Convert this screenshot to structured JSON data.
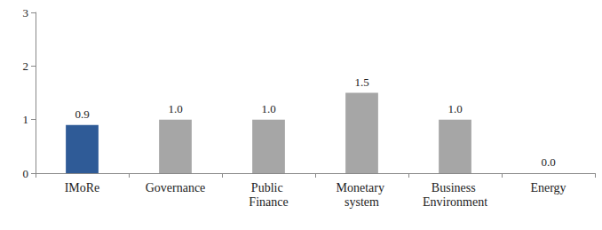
{
  "chart_data": {
    "type": "bar",
    "categories": [
      "IMoRe",
      "Governance",
      "Public Finance",
      "Monetary system",
      "Business Environment",
      "Energy"
    ],
    "values": [
      0.9,
      1.0,
      1.0,
      1.5,
      1.0,
      0.0
    ],
    "value_labels": [
      "0.9",
      "1.0",
      "1.0",
      "1.5",
      "1.0",
      "0.0"
    ],
    "colors": [
      "#2f5b97",
      "#a6a6a6",
      "#a6a6a6",
      "#a6a6a6",
      "#a6a6a6",
      "#a6a6a6"
    ],
    "ylim": [
      0,
      3
    ],
    "yticks": [
      0,
      1,
      2,
      3
    ],
    "grid": false,
    "data_labels": true
  }
}
